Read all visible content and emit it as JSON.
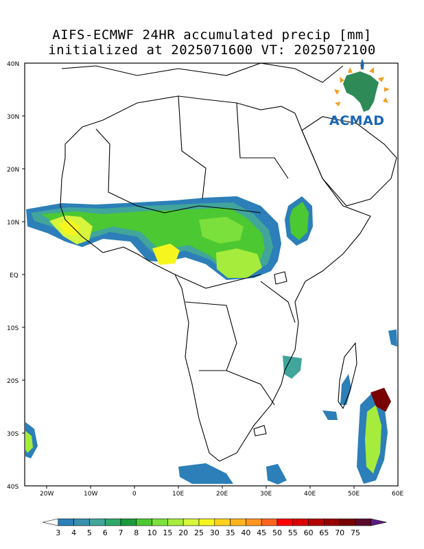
{
  "title": {
    "line1": "AIFS-ECMWF 24HR accumulated precip [mm]",
    "line2": "initialized at 2025071600 VT: 2025072100"
  },
  "axes": {
    "lat_labels": [
      "40N",
      "30N",
      "20N",
      "10N",
      "EQ",
      "10S",
      "20S",
      "30S",
      "40S"
    ],
    "lon_labels": [
      "20W",
      "10W",
      "0",
      "10E",
      "20E",
      "30E",
      "40E",
      "50E",
      "60E"
    ],
    "lon_range": [
      -25,
      60
    ],
    "lat_range": [
      -40,
      40
    ]
  },
  "logo": {
    "text": "ACMAD"
  },
  "colorbar": {
    "labels": [
      "3",
      "4",
      "5",
      "6",
      "7",
      "8",
      "10",
      "15",
      "20",
      "25",
      "30",
      "35",
      "40",
      "45",
      "50",
      "55",
      "60",
      "65",
      "70",
      "75"
    ],
    "colors": [
      "#ffffff",
      "#2c7fb8",
      "#3a8fae",
      "#41a59b",
      "#2fa86a",
      "#1a9a3a",
      "#4cc832",
      "#7be03c",
      "#a6ec3c",
      "#d7f53c",
      "#f7f51e",
      "#ffd21e",
      "#ffb41e",
      "#ff961e",
      "#ff641e",
      "#ff0000",
      "#dc0000",
      "#b40000",
      "#960000",
      "#780000",
      "#5a0a2a",
      "#5a1e82"
    ]
  }
}
